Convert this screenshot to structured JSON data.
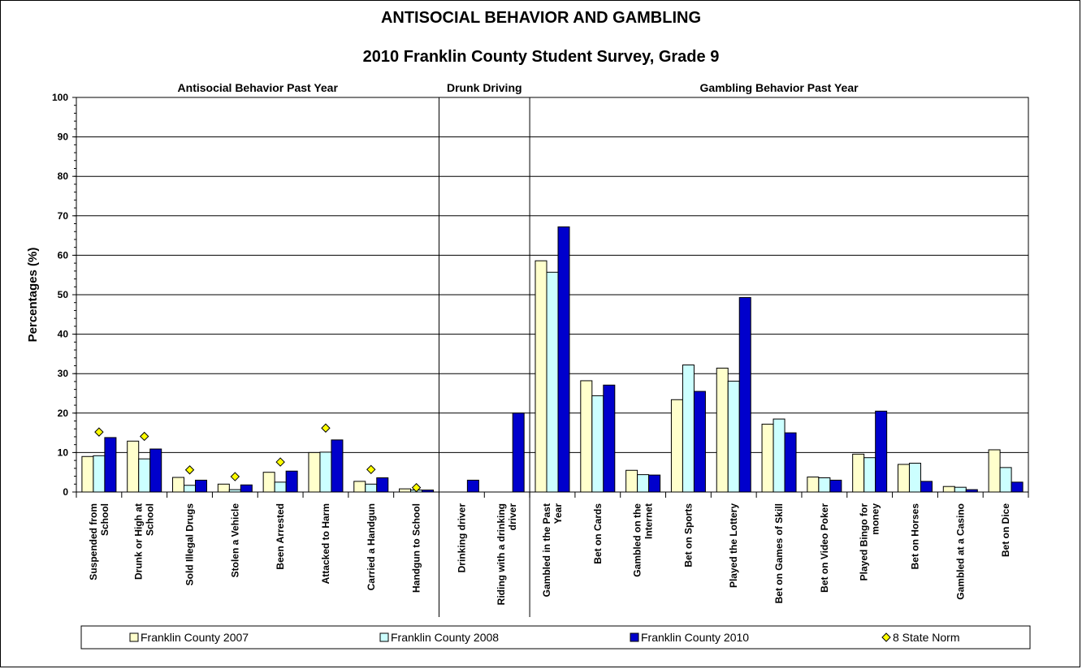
{
  "chart_data": {
    "type": "bar",
    "title": "ANTISOCIAL BEHAVIOR AND GAMBLING",
    "subtitle": "2010 Franklin County Student Survey, Grade 9",
    "ylabel": "Percentages (%)",
    "xlabel": "",
    "ylim": [
      0,
      100
    ],
    "yticks": [
      0,
      10,
      20,
      30,
      40,
      50,
      60,
      70,
      80,
      90,
      100
    ],
    "grid": true,
    "legend_position": "bottom",
    "sections": [
      {
        "label": "Antisocial Behavior Past Year",
        "start": 0,
        "end": 7
      },
      {
        "label": "Drunk Driving",
        "start": 8,
        "end": 9
      },
      {
        "label": "Gambling Behavior Past Year",
        "start": 10,
        "end": 20
      }
    ],
    "categories": [
      [
        "Suspended from",
        "School"
      ],
      [
        "Drunk or High at",
        "School"
      ],
      [
        "Sold Illegal Drugs"
      ],
      [
        "Stolen a Vehicle"
      ],
      [
        "Been Arrested"
      ],
      [
        "Attacked to Harm"
      ],
      [
        "Carried a Handgun"
      ],
      [
        "Handgun to School"
      ],
      [
        "Drinking driver"
      ],
      [
        "Riding with a drinking",
        "driver"
      ],
      [
        "Gambled in the Past",
        "Year"
      ],
      [
        "Bet on Cards"
      ],
      [
        "Gambled on the",
        "Internet"
      ],
      [
        "Bet on Sports"
      ],
      [
        "Played the Lottery"
      ],
      [
        "Bet on Games of Skill"
      ],
      [
        "Bet on Video Poker"
      ],
      [
        "Played Bingo for",
        "money"
      ],
      [
        "Bet on Horses"
      ],
      [
        "Gambled at a Casino"
      ],
      [
        "Bet on Dice"
      ]
    ],
    "series": [
      {
        "name": "Franklin County 2007",
        "color": "#ffffcc",
        "values": [
          9.0,
          12.9,
          3.7,
          2.0,
          5.0,
          10.0,
          2.7,
          0.8,
          null,
          null,
          58.6,
          28.2,
          5.5,
          23.4,
          31.4,
          17.2,
          3.8,
          9.6,
          7.0,
          1.4,
          10.7
        ]
      },
      {
        "name": "Franklin County 2008",
        "color": "#ccffff",
        "values": [
          9.2,
          8.4,
          1.7,
          0.6,
          2.5,
          10.1,
          2.0,
          0.5,
          null,
          null,
          55.7,
          24.4,
          4.4,
          32.2,
          28.1,
          18.5,
          3.6,
          8.7,
          7.3,
          1.2,
          6.2
        ]
      },
      {
        "name": "Franklin County 2010",
        "color": "#0000cc",
        "values": [
          13.8,
          10.9,
          3.0,
          1.8,
          5.3,
          13.2,
          3.6,
          0.5,
          3.0,
          20.0,
          67.2,
          27.1,
          4.3,
          25.5,
          49.3,
          15.0,
          3.0,
          20.5,
          2.7,
          0.6,
          2.5
        ]
      },
      {
        "name": "8 State Norm",
        "color": "#ffff00",
        "marker": "diamond",
        "values": [
          15.2,
          14.1,
          5.6,
          3.9,
          7.6,
          16.2,
          5.7,
          1.1,
          null,
          null,
          null,
          null,
          null,
          null,
          null,
          null,
          null,
          null,
          null,
          null,
          null
        ]
      }
    ]
  }
}
